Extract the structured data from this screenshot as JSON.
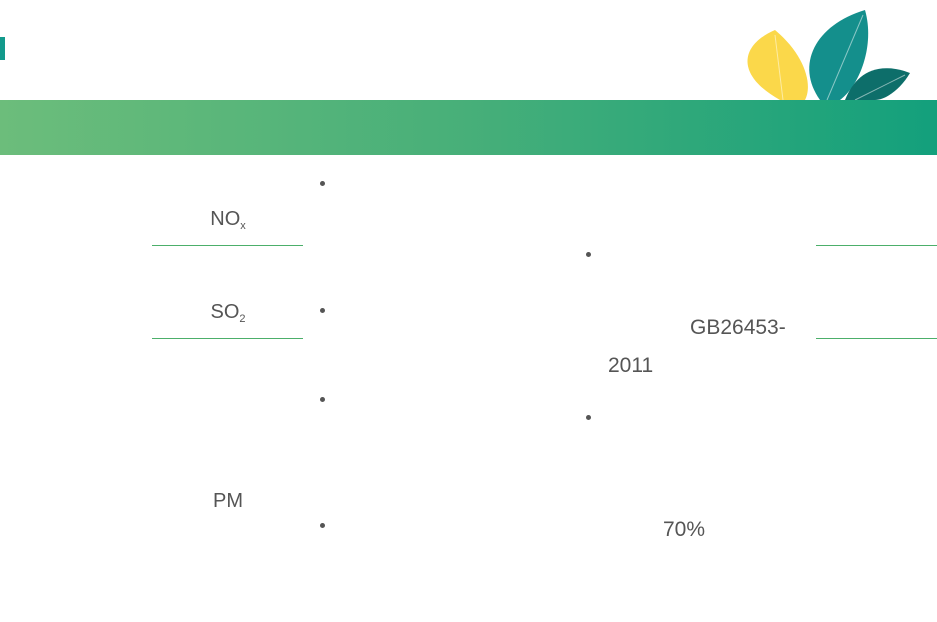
{
  "labels": [
    {
      "main": "NO",
      "sub": "x"
    },
    {
      "main": "SO",
      "sub": "2"
    },
    {
      "main": "PM"
    }
  ],
  "standard": {
    "code": "GB26453-",
    "year": "2011"
  },
  "rate": "70%"
}
